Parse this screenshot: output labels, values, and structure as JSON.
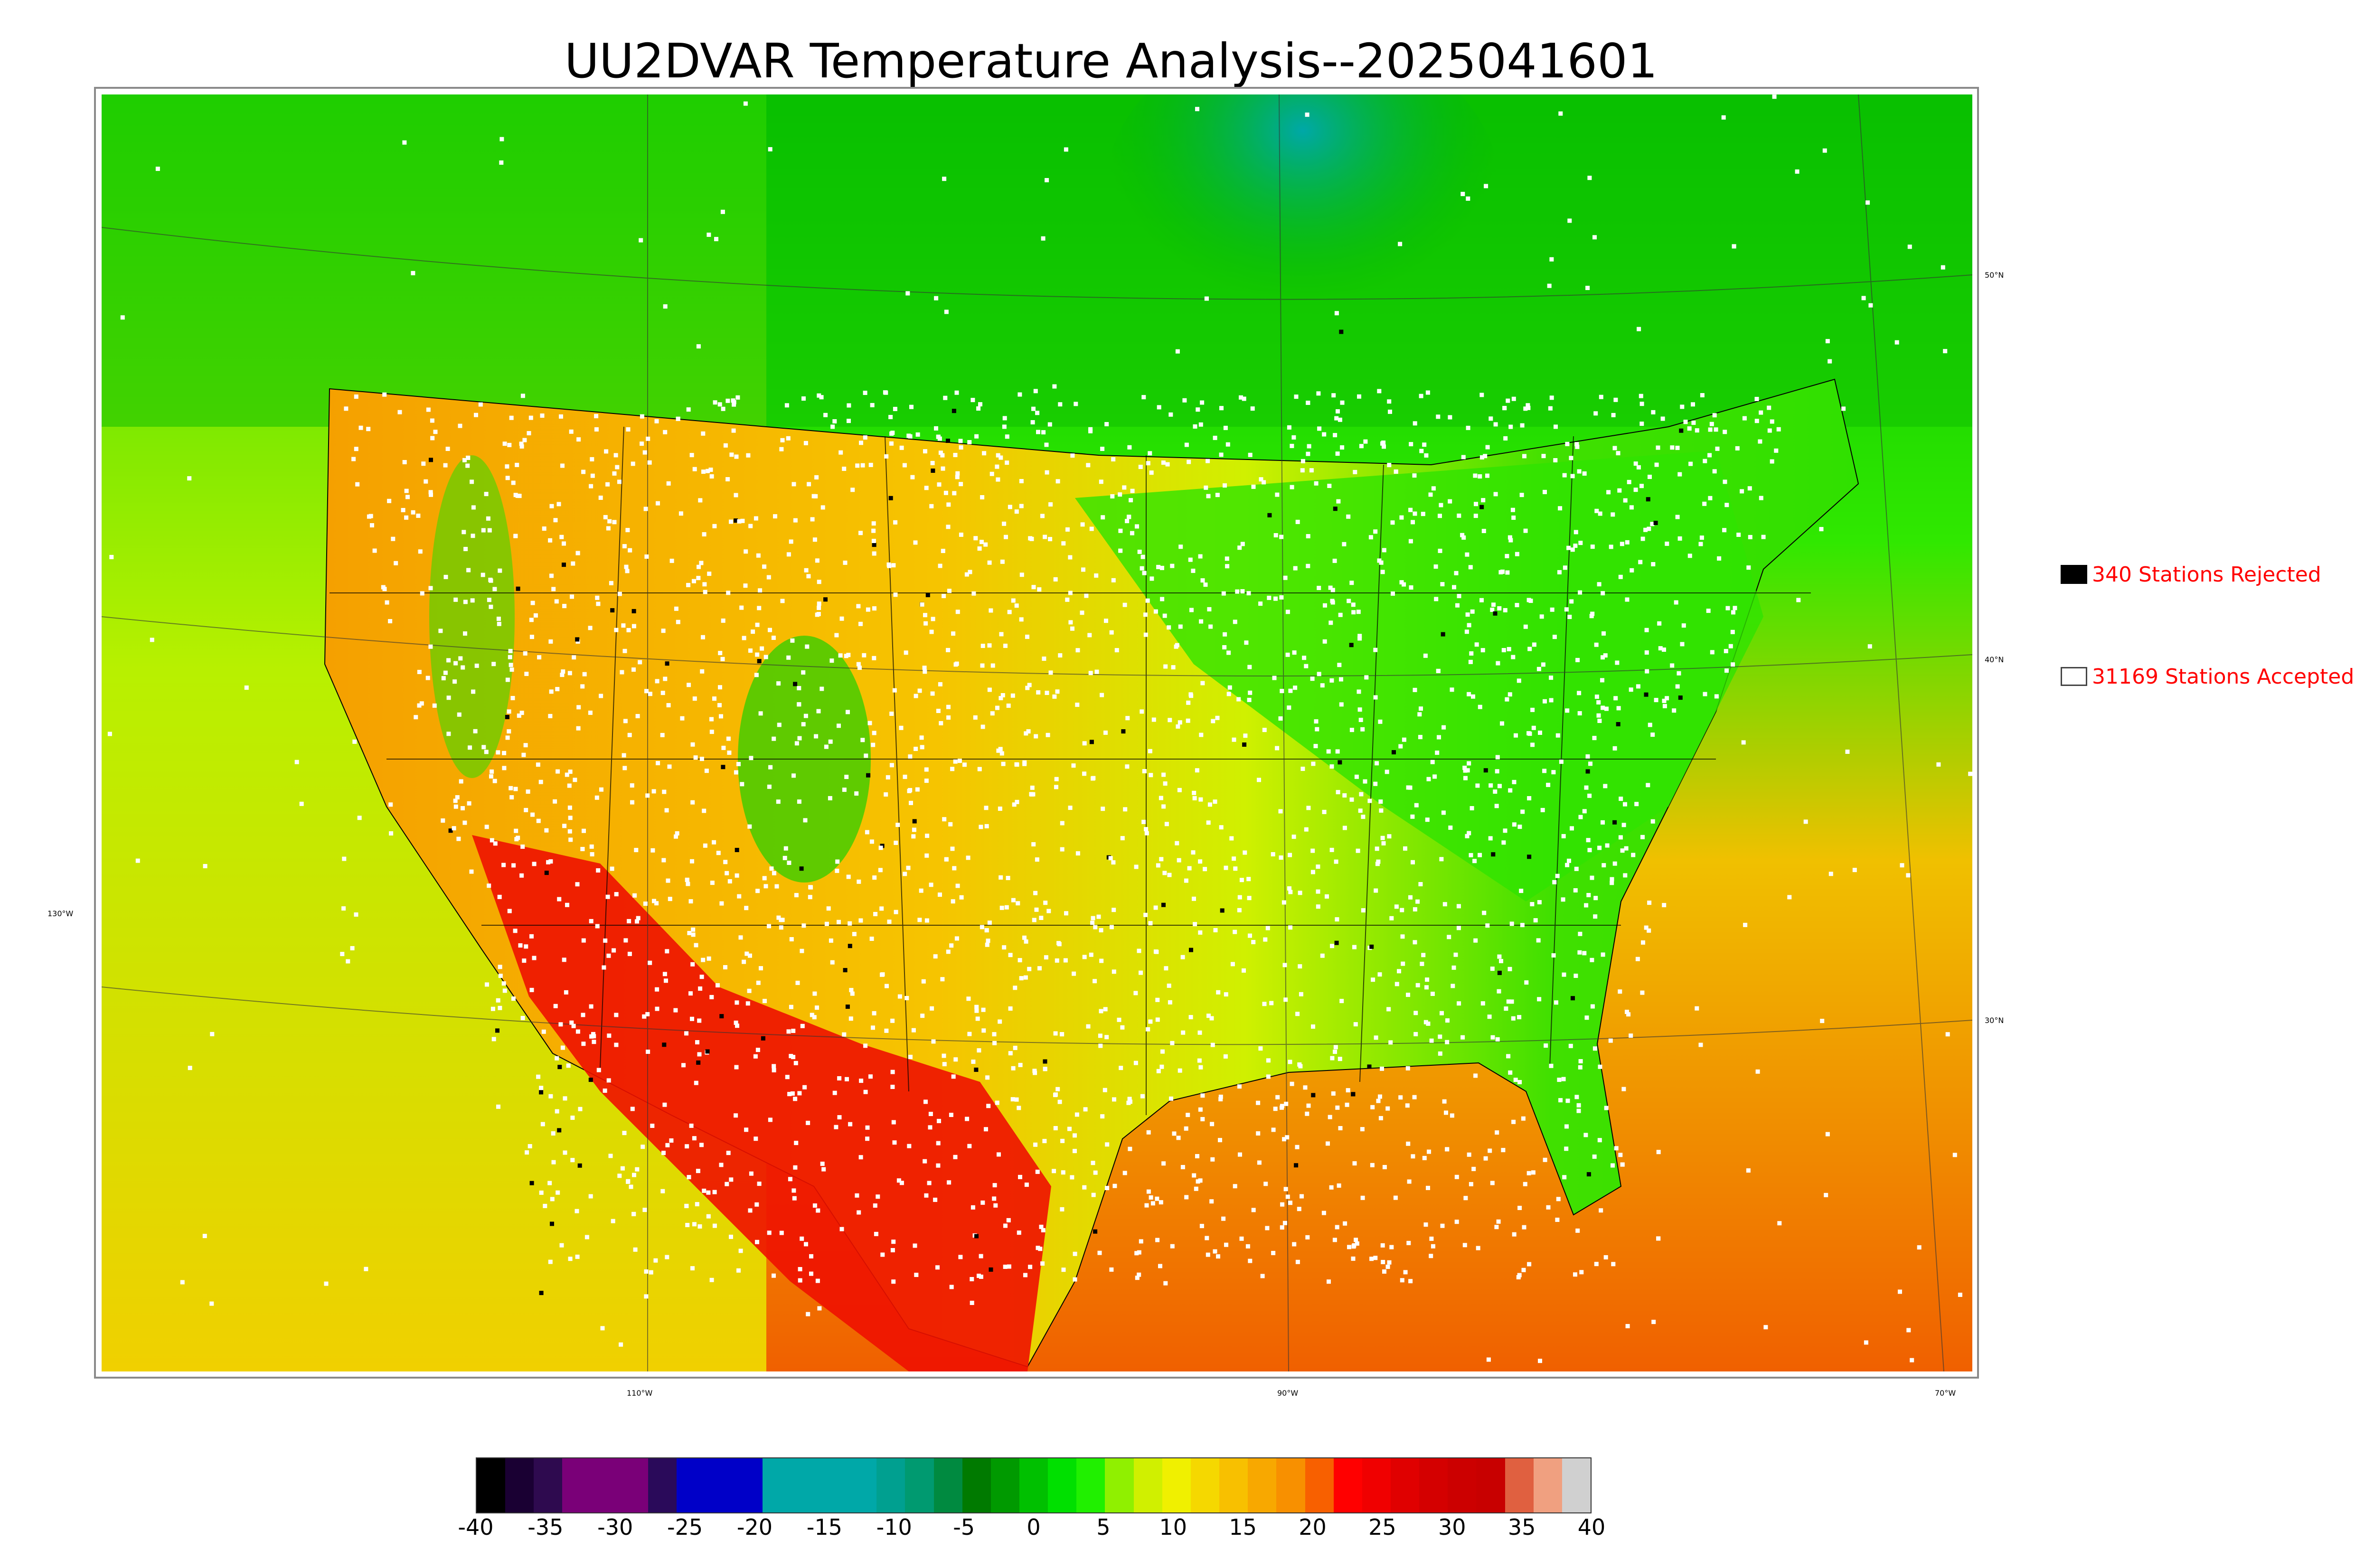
{
  "title": "UU2DVAR Temperature Analysis--2025041601",
  "map": {
    "lat_labels": [
      "50°N",
      "40°N",
      "30°N",
      "130°W"
    ],
    "lon_labels": [
      "110°W",
      "90°W",
      "70°W"
    ]
  },
  "legend": {
    "rejected": {
      "label": "340 Stations Rejected",
      "color": "#000000"
    },
    "accepted": {
      "label": "31169 Stations Accepted",
      "color": "#ffffff"
    }
  },
  "colorbar": {
    "min": -40,
    "max": 40,
    "ticks": [
      "-40",
      "-35",
      "-30",
      "-25",
      "-20",
      "-15",
      "-10",
      "-5",
      "0",
      "5",
      "10",
      "15",
      "20",
      "25",
      "30",
      "35",
      "40"
    ],
    "colors": [
      "#000000",
      "#1a0033",
      "#2e0a4f",
      "#7a0078",
      "#7a0078",
      "#7a0078",
      "#2a0a5a",
      "#0000c8",
      "#0000c8",
      "#0000c8",
      "#00a8a8",
      "#00a8a8",
      "#00a8a8",
      "#00a8a8",
      "#00a090",
      "#009a70",
      "#008a40",
      "#007a00",
      "#009a00",
      "#00c000",
      "#00e000",
      "#20f000",
      "#90f000",
      "#d0f000",
      "#f0f000",
      "#f5d800",
      "#f8c000",
      "#f8a800",
      "#f89000",
      "#f86000",
      "#ff0000",
      "#f00000",
      "#e00000",
      "#d40000",
      "#cc0000",
      "#c80000",
      "#e06040",
      "#f0a080",
      "#d0d0d0"
    ],
    "label_color": "#000000"
  },
  "palette": {
    "ocean_west": "#d8f000",
    "ocean_gulf": "#f8a800",
    "canada_north": "#00b000",
    "hudson": "#00a8a8",
    "desert_hot": "#ee1100",
    "plains": "#f4c800",
    "midwest": "#40e000",
    "station_accepted": "#ffffff",
    "station_rejected": "#000000"
  }
}
